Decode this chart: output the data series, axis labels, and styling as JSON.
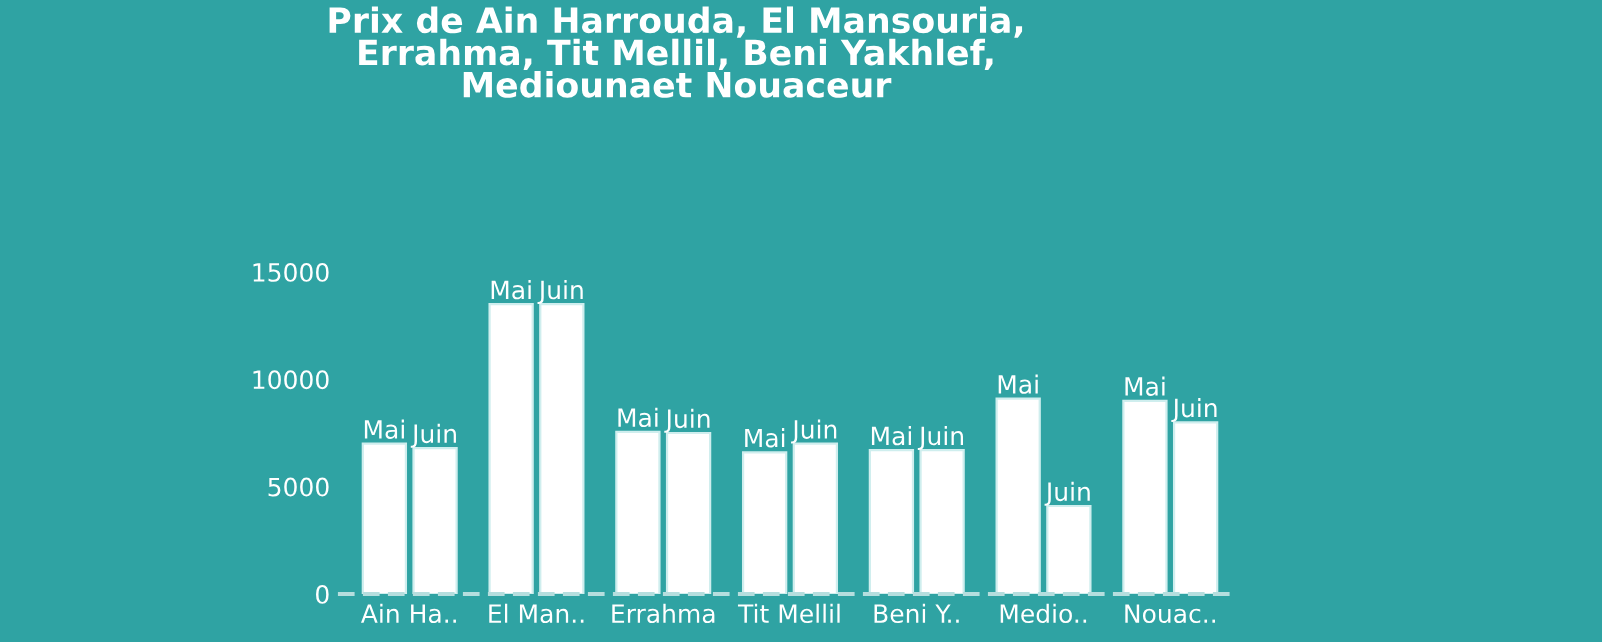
{
  "chart_data": {
    "type": "bar",
    "title": "Prix de Ain Harrouda, El Mansouria,\nErrahma, Tit Mellil, Beni Yakhlef,\nMediounaet Nouaceur",
    "categories": [
      "Ain Ha..",
      "El Man..",
      "Errahma",
      "Tit Mellil",
      "Beni Y..",
      "Medio..",
      "Nouac.."
    ],
    "series": [
      {
        "name": "Mai",
        "color": "#ffffff",
        "values": [
          7000,
          13500,
          7550,
          6600,
          6700,
          9100,
          9000
        ]
      },
      {
        "name": "Juin",
        "color": "#ffffff",
        "values": [
          6800,
          13500,
          7500,
          7000,
          6700,
          4100,
          8000
        ]
      }
    ],
    "ylim": [
      0,
      15000
    ],
    "yticks": [
      0,
      5000,
      10000,
      15000
    ],
    "grid": false,
    "legend": false
  }
}
